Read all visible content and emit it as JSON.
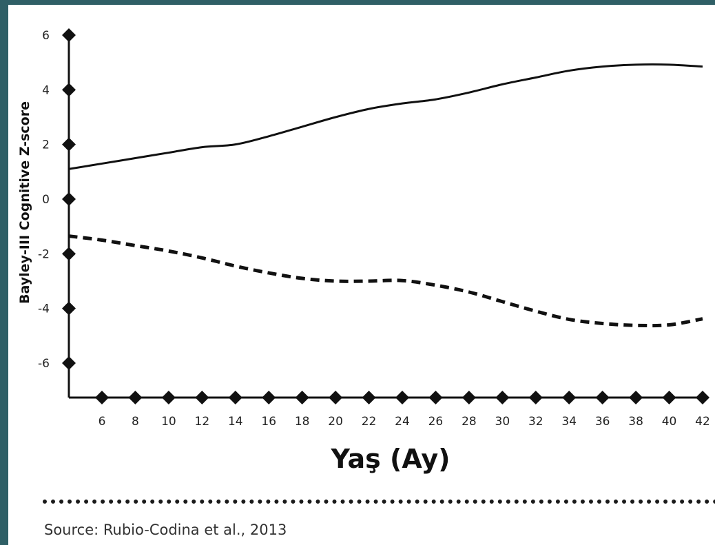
{
  "chart_data": {
    "type": "line",
    "ylabel": "Bayley-III Cognitive Z-score",
    "xlabel": "Yaş (Ay)",
    "x_ticks": [
      6,
      8,
      10,
      12,
      14,
      16,
      18,
      20,
      22,
      24,
      26,
      28,
      30,
      32,
      34,
      36,
      38,
      40,
      42
    ],
    "y_ticks": [
      -6,
      -4,
      -2,
      0,
      2,
      4,
      6
    ],
    "xlim": [
      3,
      42
    ],
    "ylim": [
      -7.2,
      6
    ],
    "grid": false,
    "series": [
      {
        "style": "solid",
        "color": "#111111",
        "x": [
          4,
          6,
          8,
          10,
          12,
          14,
          16,
          18,
          20,
          22,
          24,
          26,
          28,
          30,
          32,
          34,
          36,
          38,
          40,
          42
        ],
        "y": [
          1.1,
          1.3,
          1.5,
          1.7,
          1.9,
          2.0,
          2.3,
          2.65,
          3.0,
          3.3,
          3.5,
          3.65,
          3.9,
          4.2,
          4.45,
          4.7,
          4.85,
          4.92,
          4.92,
          4.85
        ]
      },
      {
        "style": "dashed",
        "color": "#111111",
        "x": [
          4,
          6,
          8,
          10,
          12,
          14,
          16,
          18,
          20,
          22,
          24,
          26,
          28,
          30,
          32,
          34,
          36,
          38,
          40,
          42
        ],
        "y": [
          -1.35,
          -1.5,
          -1.7,
          -1.9,
          -2.15,
          -2.45,
          -2.7,
          -2.9,
          -3.0,
          -3.0,
          -2.98,
          -3.15,
          -3.4,
          -3.75,
          -4.1,
          -4.4,
          -4.55,
          -4.62,
          -4.6,
          -4.38
        ]
      }
    ]
  },
  "source": "Source: Rubio-Codina et al., 2013"
}
